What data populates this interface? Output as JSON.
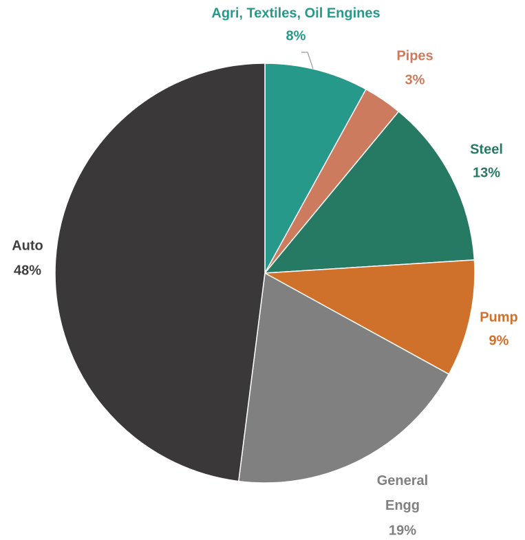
{
  "chart_data": {
    "type": "pie",
    "categories": [
      "Agri, Textiles, Oil Engines",
      "Pipes",
      "Steel",
      "Pump",
      "General Engg",
      "Auto"
    ],
    "values": [
      8,
      3,
      13,
      9,
      19,
      48
    ],
    "value_labels": [
      "8%",
      "3%",
      "13%",
      "9%",
      "19%",
      "48%"
    ],
    "colors": [
      "#26998a",
      "#cd7b5e",
      "#267a63",
      "#d0712b",
      "#808080",
      "#3a3839"
    ]
  }
}
